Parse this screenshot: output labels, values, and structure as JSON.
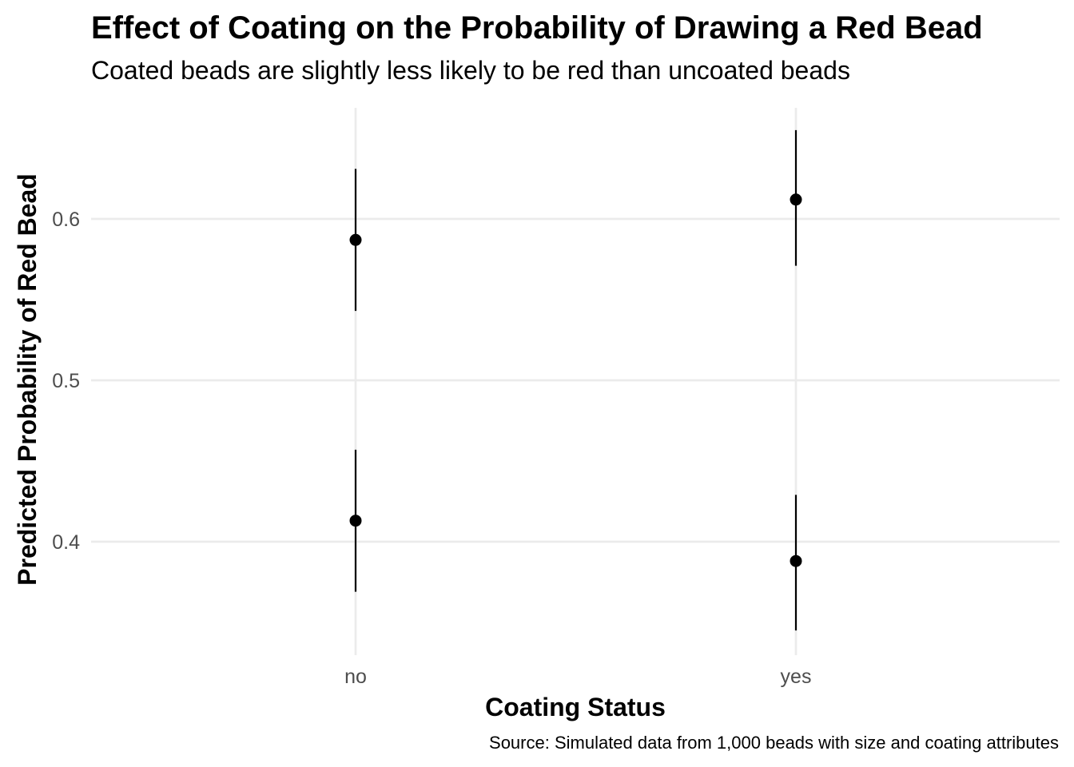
{
  "chart_data": {
    "type": "scatter",
    "title": "Effect of Coating on the Probability of Drawing a Red Bead",
    "subtitle": "Coated beads are slightly less likely to be red than uncoated beads",
    "xlabel": "Coating Status",
    "ylabel": "Predicted Probability of Red Bead",
    "caption": "Source: Simulated data from 1,000 beads with size and coating attributes",
    "categories": [
      "no",
      "yes"
    ],
    "y_ticks": [
      0.4,
      0.5,
      0.6
    ],
    "ylim": [
      0.329,
      0.67
    ],
    "grid": true,
    "legend": "none",
    "points": [
      {
        "x": "no",
        "y": 0.587,
        "lower": 0.543,
        "upper": 0.631
      },
      {
        "x": "no",
        "y": 0.413,
        "lower": 0.369,
        "upper": 0.457
      },
      {
        "x": "yes",
        "y": 0.612,
        "lower": 0.571,
        "upper": 0.655
      },
      {
        "x": "yes",
        "y": 0.388,
        "lower": 0.345,
        "upper": 0.429
      }
    ],
    "colors": {
      "points": "#000000",
      "gridlines": "#ebebeb",
      "tick_labels": "#4d4d4d"
    }
  }
}
